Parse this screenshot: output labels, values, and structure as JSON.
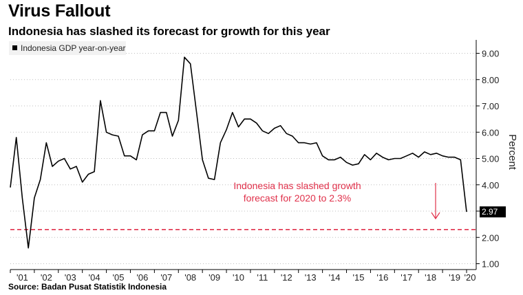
{
  "header": {
    "title": "Virus Fallout",
    "subtitle": "Indonesia has slashed its forecast for growth for this year"
  },
  "footer": {
    "source": "Source: Badan Pusat Statistik Indonesia"
  },
  "chart_data": {
    "type": "line",
    "title": "Virus Fallout",
    "subtitle": "Indonesia has slashed its forecast for growth for this year",
    "ylabel": "Percent",
    "ylim": [
      0.8,
      9.5
    ],
    "y_ticks": [
      "1.00",
      "2.00",
      "3.00",
      "4.00",
      "5.00",
      "6.00",
      "7.00",
      "8.00",
      "9.00"
    ],
    "y_axis_side": "right",
    "x_ticks": [
      "'01",
      "'02",
      "'03",
      "'04",
      "'05",
      "'06",
      "'07",
      "'08",
      "'09",
      "'10",
      "'11",
      "'12",
      "'13",
      "'14",
      "'15",
      "'16",
      "'17",
      "'18",
      "'19",
      "'20"
    ],
    "legend": {
      "position": "top-left",
      "entries": [
        "Indonesia GDP year-on-year"
      ]
    },
    "grid": "horizontal dotted",
    "series": [
      {
        "name": "Indonesia GDP year-on-year",
        "color": "#000000",
        "x": [
          2001.0,
          2001.25,
          2001.5,
          2001.75,
          2002.0,
          2002.25,
          2002.5,
          2002.75,
          2003.0,
          2003.25,
          2003.5,
          2003.75,
          2004.0,
          2004.25,
          2004.5,
          2004.75,
          2005.0,
          2005.25,
          2005.5,
          2005.75,
          2006.0,
          2006.25,
          2006.5,
          2006.75,
          2007.0,
          2007.25,
          2007.5,
          2007.75,
          2008.0,
          2008.25,
          2008.5,
          2008.75,
          2009.0,
          2009.25,
          2009.5,
          2009.75,
          2010.0,
          2010.25,
          2010.5,
          2010.75,
          2011.0,
          2011.25,
          2011.5,
          2011.75,
          2012.0,
          2012.25,
          2012.5,
          2012.75,
          2013.0,
          2013.25,
          2013.5,
          2013.75,
          2014.0,
          2014.25,
          2014.5,
          2014.75,
          2015.0,
          2015.25,
          2015.5,
          2015.75,
          2016.0,
          2016.25,
          2016.5,
          2016.75,
          2017.0,
          2017.25,
          2017.5,
          2017.75,
          2018.0,
          2018.25,
          2018.5,
          2018.75,
          2019.0,
          2019.25,
          2019.5,
          2019.75,
          2020.0
        ],
        "y": [
          3.9,
          5.8,
          3.5,
          1.6,
          3.5,
          4.2,
          5.6,
          4.7,
          4.9,
          5.0,
          4.6,
          4.7,
          4.1,
          4.4,
          4.5,
          7.2,
          6.0,
          5.9,
          5.85,
          5.1,
          5.1,
          4.95,
          5.9,
          6.05,
          6.05,
          6.75,
          6.75,
          5.85,
          6.45,
          8.85,
          8.6,
          6.8,
          4.95,
          4.25,
          4.2,
          5.6,
          6.1,
          6.75,
          6.2,
          6.5,
          6.5,
          6.35,
          6.05,
          5.95,
          6.15,
          6.25,
          5.95,
          5.85,
          5.6,
          5.6,
          5.55,
          5.6,
          5.1,
          4.95,
          4.95,
          5.05,
          4.85,
          4.75,
          4.8,
          5.15,
          4.95,
          5.2,
          5.05,
          4.95,
          5.0,
          5.0,
          5.1,
          5.2,
          5.05,
          5.25,
          5.15,
          5.2,
          5.1,
          5.05,
          5.05,
          4.95,
          2.97
        ]
      }
    ],
    "last_value_label": "2.97",
    "reference_line": {
      "value": 2.3,
      "color": "#e0304a",
      "style": "dashed"
    },
    "annotation": {
      "text_line1": "Indonesia has slashed growth",
      "text_line2": "forecast for 2020 to 2.3%",
      "color": "#e0304a"
    }
  }
}
